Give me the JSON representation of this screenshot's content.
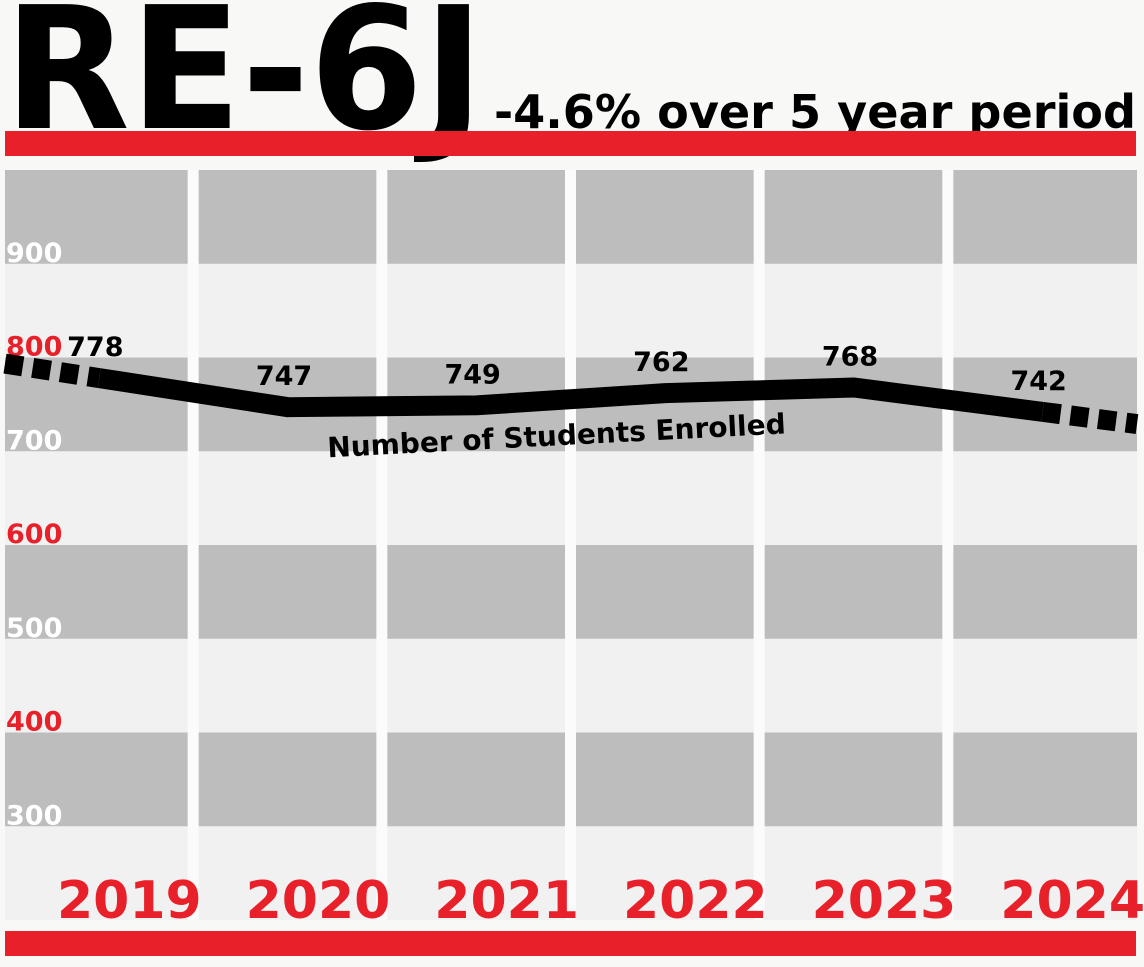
{
  "chart_data": {
    "type": "line",
    "title": "RE-6J",
    "subtitle": "-4.6% over 5 year period",
    "categories": [
      "2019",
      "2020",
      "2021",
      "2022",
      "2023",
      "2024"
    ],
    "series": [
      {
        "name": "Number of Students Enrolled",
        "color": "#000000",
        "values": [
          778,
          747,
          749,
          762,
          768,
          742
        ]
      }
    ],
    "ylim": [
      200,
      1000
    ],
    "yticks": [
      300,
      400,
      500,
      600,
      700,
      800,
      900
    ],
    "grid": true
  }
}
